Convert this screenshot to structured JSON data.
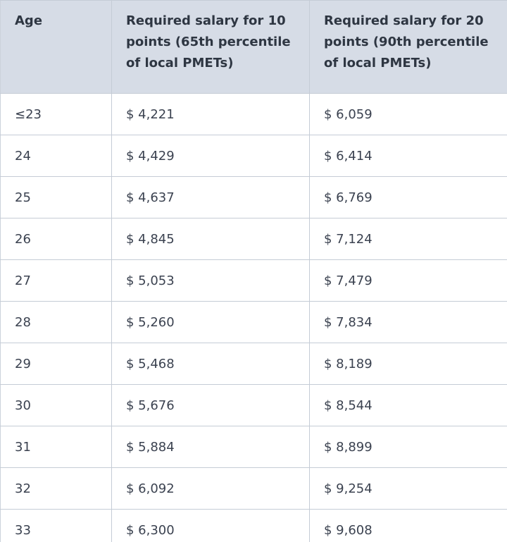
{
  "table": {
    "headers": [
      "Age",
      "Required salary for 10 points (65th percentile of local PMETs)",
      "Required salary for 20 points (90th percentile of local PMETs)"
    ],
    "rows": [
      [
        "≤23",
        "$ 4,221",
        "$ 6,059"
      ],
      [
        "24",
        "$ 4,429",
        "$ 6,414"
      ],
      [
        "25",
        "$ 4,637",
        "$ 6,769"
      ],
      [
        "26",
        "$ 4,845",
        "$ 7,124"
      ],
      [
        "27",
        "$ 5,053",
        "$ 7,479"
      ],
      [
        "28",
        "$ 5,260",
        "$ 7,834"
      ],
      [
        "29",
        "$ 5,468",
        "$ 8,189"
      ],
      [
        "30",
        "$ 5,676",
        "$ 8,544"
      ],
      [
        "31",
        "$ 5,884",
        "$ 8,899"
      ],
      [
        "32",
        "$ 6,092",
        "$ 9,254"
      ],
      [
        "33",
        "$ 6,300",
        "$ 9,608"
      ]
    ]
  }
}
